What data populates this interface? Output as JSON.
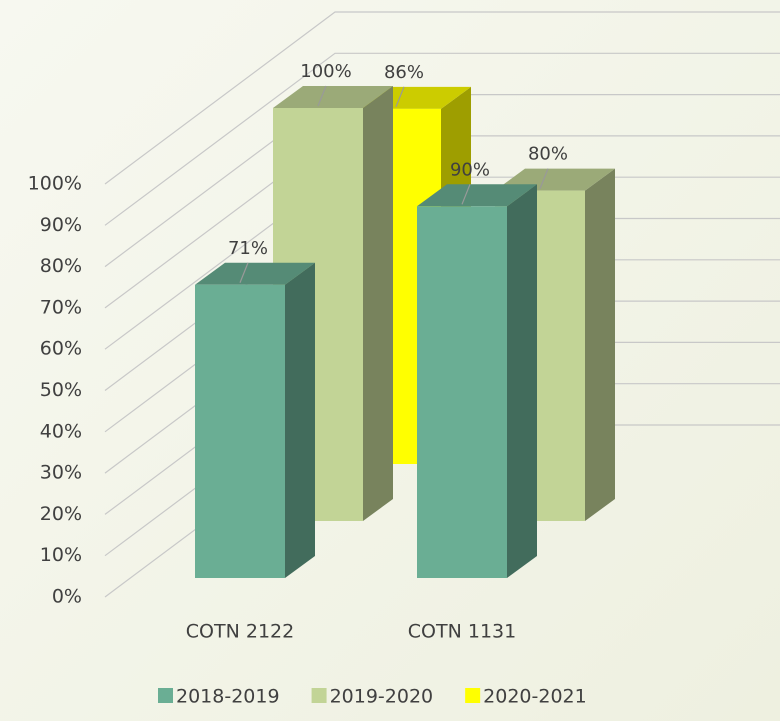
{
  "chart_data": {
    "type": "bar3d",
    "categories": [
      "COTN 2122",
      "COTN 1131"
    ],
    "series": [
      {
        "name": "2018-2019",
        "color": "#6aae94",
        "values": [
          71,
          90
        ],
        "value_labels": [
          "71%",
          "90%"
        ]
      },
      {
        "name": "2019-2020",
        "color": "#c2d496",
        "values": [
          100,
          80
        ],
        "value_labels": [
          "100%",
          "80%"
        ]
      },
      {
        "name": "2020-2021",
        "color": "#ffff00",
        "values": [
          86,
          null
        ],
        "value_labels": [
          "86%",
          null
        ]
      }
    ],
    "ylim": [
      0,
      100
    ],
    "yticks": [
      {
        "value": 0,
        "label": "0%"
      },
      {
        "value": 10,
        "label": "10%"
      },
      {
        "value": 20,
        "label": "20%"
      },
      {
        "value": 30,
        "label": "30%"
      },
      {
        "value": 40,
        "label": "40%"
      },
      {
        "value": 50,
        "label": "50%"
      },
      {
        "value": 60,
        "label": "60%"
      },
      {
        "value": 70,
        "label": "70%"
      },
      {
        "value": 80,
        "label": "80%"
      },
      {
        "value": 90,
        "label": "90%"
      },
      {
        "value": 100,
        "label": "100%"
      }
    ],
    "grid": true,
    "legend": "bottom"
  }
}
